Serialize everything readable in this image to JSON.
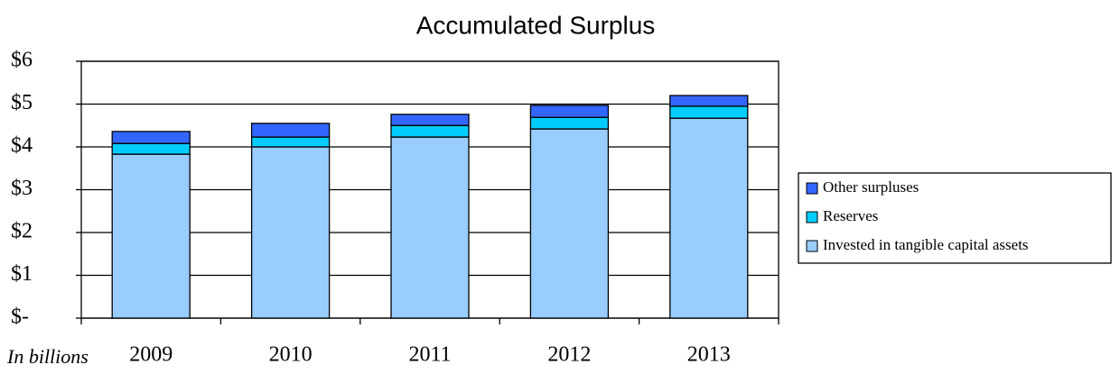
{
  "chart_data": {
    "type": "stacked_bar",
    "title": "Accumulated Surplus",
    "annotation": "In billions",
    "categories": [
      "2009",
      "2010",
      "2011",
      "2012",
      "2013"
    ],
    "series": [
      {
        "name": "Invested in tangible capital assets",
        "color": "#99ccff",
        "values": [
          3.83,
          4.0,
          4.23,
          4.42,
          4.67
        ]
      },
      {
        "name": "Reserves",
        "color": "#00ccff",
        "values": [
          0.25,
          0.23,
          0.27,
          0.27,
          0.28
        ]
      },
      {
        "name": "Other surpluses",
        "color": "#3366ff",
        "values": [
          0.28,
          0.32,
          0.26,
          0.28,
          0.25
        ]
      }
    ],
    "ylim": [
      0,
      6
    ],
    "yticks": [
      {
        "value": 0,
        "label": "$-"
      },
      {
        "value": 1,
        "label": "$1"
      },
      {
        "value": 2,
        "label": "$2"
      },
      {
        "value": 3,
        "label": "$3"
      },
      {
        "value": 4,
        "label": "$4"
      },
      {
        "value": 5,
        "label": "$5"
      },
      {
        "value": 6,
        "label": "$6"
      }
    ],
    "grid": true,
    "legend": "right"
  }
}
